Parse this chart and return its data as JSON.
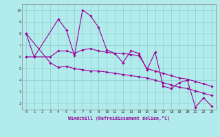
{
  "xlabel": "Windchill (Refroidissement éolien,°C)",
  "background_color": "#b2ebeb",
  "grid_color": "#90cccc",
  "line_color": "#990099",
  "xlim": [
    -0.5,
    23.5
  ],
  "ylim": [
    1.5,
    10.5
  ],
  "yticks": [
    2,
    3,
    4,
    5,
    6,
    7,
    8,
    9,
    10
  ],
  "xticks": [
    0,
    1,
    2,
    3,
    4,
    5,
    6,
    7,
    8,
    9,
    10,
    11,
    12,
    13,
    14,
    15,
    16,
    17,
    18,
    19,
    20,
    21,
    22,
    23
  ],
  "line1_x": [
    0,
    1,
    4,
    5,
    6,
    7,
    8,
    9,
    10,
    11,
    12,
    13,
    14,
    15,
    16,
    17,
    18,
    19,
    20,
    21,
    22,
    23
  ],
  "line1_y": [
    8.0,
    6.0,
    9.2,
    8.3,
    6.1,
    10.0,
    9.5,
    8.5,
    6.6,
    6.3,
    5.5,
    6.5,
    6.3,
    4.9,
    6.4,
    3.5,
    3.3,
    3.8,
    4.0,
    1.7,
    2.5,
    1.8
  ],
  "line2_x": [
    0,
    1,
    3,
    4,
    5,
    6,
    7,
    8,
    9,
    10,
    11,
    12,
    13,
    14,
    15,
    16,
    17,
    18,
    19,
    20,
    21,
    22,
    23
  ],
  "line2_y": [
    6.0,
    6.0,
    6.0,
    6.5,
    6.5,
    6.3,
    6.6,
    6.7,
    6.5,
    6.4,
    6.3,
    6.3,
    6.2,
    6.1,
    5.0,
    4.8,
    4.6,
    4.4,
    4.2,
    4.1,
    3.9,
    3.7,
    3.5
  ],
  "line3_x": [
    0,
    3,
    4,
    5,
    6,
    7,
    8,
    9,
    10,
    11,
    12,
    13,
    14,
    15,
    16,
    17,
    18,
    19,
    20,
    21,
    22,
    23
  ],
  "line3_y": [
    8.0,
    5.5,
    5.1,
    5.2,
    5.0,
    4.9,
    4.8,
    4.8,
    4.7,
    4.6,
    4.5,
    4.4,
    4.3,
    4.2,
    4.0,
    3.8,
    3.6,
    3.4,
    3.3,
    3.1,
    2.9,
    2.7
  ]
}
